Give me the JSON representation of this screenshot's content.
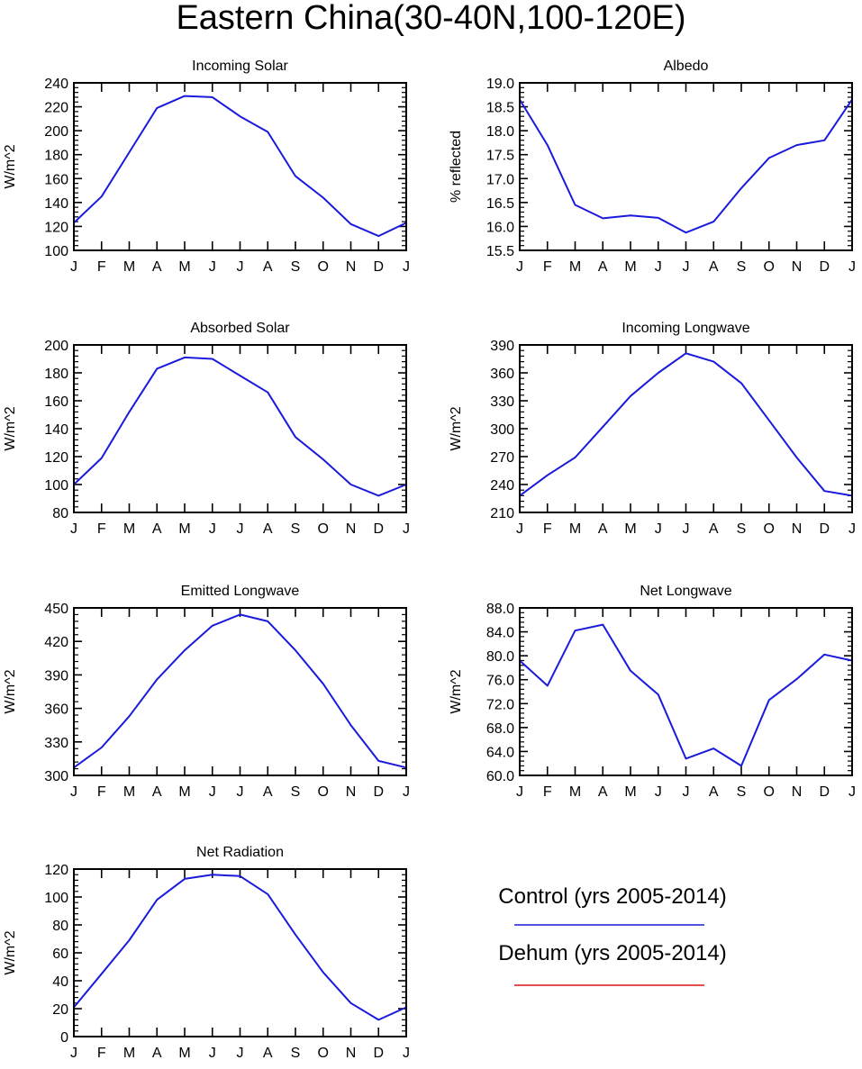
{
  "figure": {
    "title": "Eastern China(30-40N,100-120E)",
    "legend": [
      {
        "name": "Control (yrs 2005-2014)",
        "color": "#1a1adc"
      },
      {
        "name": "Dehum (yrs 2005-2014)",
        "color": "#e01010"
      }
    ]
  },
  "chart_data": [
    {
      "type": "line",
      "title": "Incoming Solar",
      "xlabel": "",
      "ylabel": "W/m^2",
      "x": [
        "J",
        "F",
        "M",
        "A",
        "M",
        "J",
        "J",
        "A",
        "S",
        "O",
        "N",
        "D",
        "J"
      ],
      "ylim": [
        100,
        240
      ],
      "yticks": [
        "100",
        "120",
        "140",
        "160",
        "180",
        "200",
        "220",
        "240"
      ],
      "series": [
        {
          "name": "Control (yrs 2005-2014)",
          "color": "#1a1adc",
          "values": [
            123,
            145,
            182,
            219,
            229,
            228,
            212,
            199,
            162,
            144,
            122,
            112,
            123
          ]
        }
      ]
    },
    {
      "type": "line",
      "title": "Albedo",
      "xlabel": "",
      "ylabel": "% reflected",
      "x": [
        "J",
        "F",
        "M",
        "A",
        "M",
        "J",
        "J",
        "A",
        "S",
        "O",
        "N",
        "D",
        "J"
      ],
      "ylim": [
        15.5,
        19.0
      ],
      "yticks": [
        "15.5",
        "16.0",
        "16.5",
        "17.0",
        "17.5",
        "18.0",
        "18.5",
        "19.0"
      ],
      "series": [
        {
          "name": "Control (yrs 2005-2014)",
          "color": "#1a1adc",
          "values": [
            18.65,
            17.7,
            16.45,
            16.17,
            16.23,
            16.18,
            15.87,
            16.1,
            16.8,
            17.43,
            17.7,
            17.8,
            18.65
          ]
        }
      ]
    },
    {
      "type": "line",
      "title": "Absorbed Solar",
      "xlabel": "",
      "ylabel": "W/m^2",
      "x": [
        "J",
        "F",
        "M",
        "A",
        "M",
        "J",
        "J",
        "A",
        "S",
        "O",
        "N",
        "D",
        "J"
      ],
      "ylim": [
        80,
        200
      ],
      "yticks": [
        "80",
        "100",
        "120",
        "140",
        "160",
        "180",
        "200"
      ],
      "series": [
        {
          "name": "Control (yrs 2005-2014)",
          "color": "#1a1adc",
          "values": [
            100,
            119,
            152,
            183,
            191,
            190,
            178,
            166,
            134,
            118,
            100,
            92,
            100
          ]
        }
      ]
    },
    {
      "type": "line",
      "title": "Incoming Longwave",
      "xlabel": "",
      "ylabel": "W/m^2",
      "x": [
        "J",
        "F",
        "M",
        "A",
        "M",
        "J",
        "J",
        "A",
        "S",
        "O",
        "N",
        "D",
        "J"
      ],
      "ylim": [
        210,
        390
      ],
      "yticks": [
        "210",
        "240",
        "270",
        "300",
        "330",
        "360",
        "390"
      ],
      "series": [
        {
          "name": "Control (yrs 2005-2014)",
          "color": "#1a1adc",
          "values": [
            228,
            250,
            269,
            302,
            335,
            360,
            381,
            372,
            349,
            309,
            269,
            233,
            228
          ]
        }
      ]
    },
    {
      "type": "line",
      "title": "Emitted Longwave",
      "xlabel": "",
      "ylabel": "W/m^2",
      "x": [
        "J",
        "F",
        "M",
        "A",
        "M",
        "J",
        "J",
        "A",
        "S",
        "O",
        "N",
        "D",
        "J"
      ],
      "ylim": [
        300,
        450
      ],
      "yticks": [
        "300",
        "330",
        "360",
        "390",
        "420",
        "450"
      ],
      "series": [
        {
          "name": "Control (yrs 2005-2014)",
          "color": "#1a1adc",
          "values": [
            307,
            325,
            353,
            386,
            412,
            434,
            444,
            438,
            412,
            382,
            345,
            313,
            307
          ]
        }
      ]
    },
    {
      "type": "line",
      "title": "Net Longwave",
      "xlabel": "",
      "ylabel": "W/m^2",
      "x": [
        "J",
        "F",
        "M",
        "A",
        "M",
        "J",
        "J",
        "A",
        "S",
        "O",
        "N",
        "D",
        "J"
      ],
      "ylim": [
        60,
        88
      ],
      "yticks": [
        "60.0",
        "64.0",
        "68.0",
        "72.0",
        "76.0",
        "80.0",
        "84.0",
        "88.0"
      ],
      "series": [
        {
          "name": "Control (yrs 2005-2014)",
          "color": "#1a1adc",
          "values": [
            79.2,
            75.0,
            84.2,
            85.2,
            77.5,
            73.5,
            62.8,
            64.5,
            61.6,
            72.6,
            76.1,
            80.2,
            79.2
          ]
        }
      ]
    },
    {
      "type": "line",
      "title": "Net Radiation",
      "xlabel": "",
      "ylabel": "W/m^2",
      "x": [
        "J",
        "F",
        "M",
        "A",
        "M",
        "J",
        "J",
        "A",
        "S",
        "O",
        "N",
        "D",
        "J"
      ],
      "ylim": [
        0,
        120
      ],
      "yticks": [
        "0",
        "20",
        "40",
        "60",
        "80",
        "100",
        "120"
      ],
      "series": [
        {
          "name": "Control (yrs 2005-2014)",
          "color": "#1a1adc",
          "values": [
            21,
            45,
            69,
            98,
            113,
            116,
            115,
            102,
            73,
            46,
            24,
            12,
            21
          ]
        }
      ]
    }
  ]
}
